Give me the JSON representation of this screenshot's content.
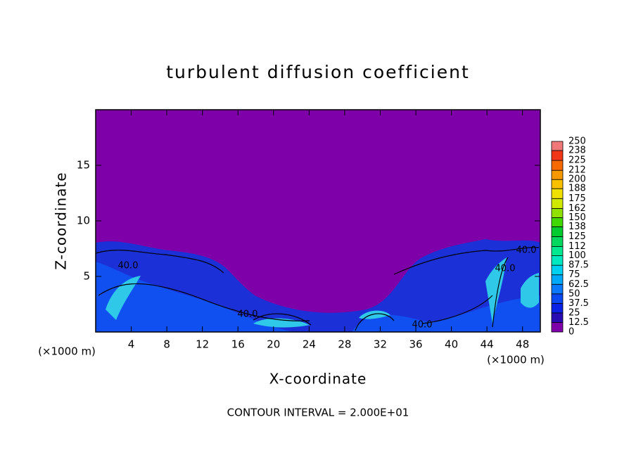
{
  "chart_data": {
    "type": "contour",
    "title": "turbulent diffusion coefficient",
    "x_label": "X-coordinate",
    "y_label": "Z-coordinate",
    "x_unit": "(×1000 m)",
    "y_unit": "(×1000 m)",
    "xlim": [
      0,
      50
    ],
    "xticks": [
      4,
      8,
      12,
      16,
      20,
      24,
      28,
      32,
      36,
      40,
      44,
      48
    ],
    "ylim": [
      0,
      20
    ],
    "yticks": [
      5,
      10,
      15
    ],
    "colorbar": {
      "levels": [
        0,
        12.5,
        25,
        37.5,
        50,
        62.5,
        75,
        87.5,
        100,
        112,
        125,
        138,
        150,
        162,
        175,
        188,
        200,
        212,
        225,
        238,
        250
      ],
      "colors": [
        "#7e00a8",
        "#2a0cb4",
        "#0a22e6",
        "#0a48f2",
        "#0a78fa",
        "#00a8fa",
        "#00d0f0",
        "#00e8c0",
        "#00e890",
        "#00d860",
        "#00cc30",
        "#40d800",
        "#90e000",
        "#d0e800",
        "#f0e000",
        "#f8c000",
        "#f89800",
        "#f86800",
        "#f03818",
        "#f07878"
      ]
    },
    "contour_labels": [
      "40.0",
      "40.0",
      "40.0",
      "40.0",
      "40.0"
    ],
    "footnote": "CONTOUR INTERVAL = 2.000E+01"
  }
}
